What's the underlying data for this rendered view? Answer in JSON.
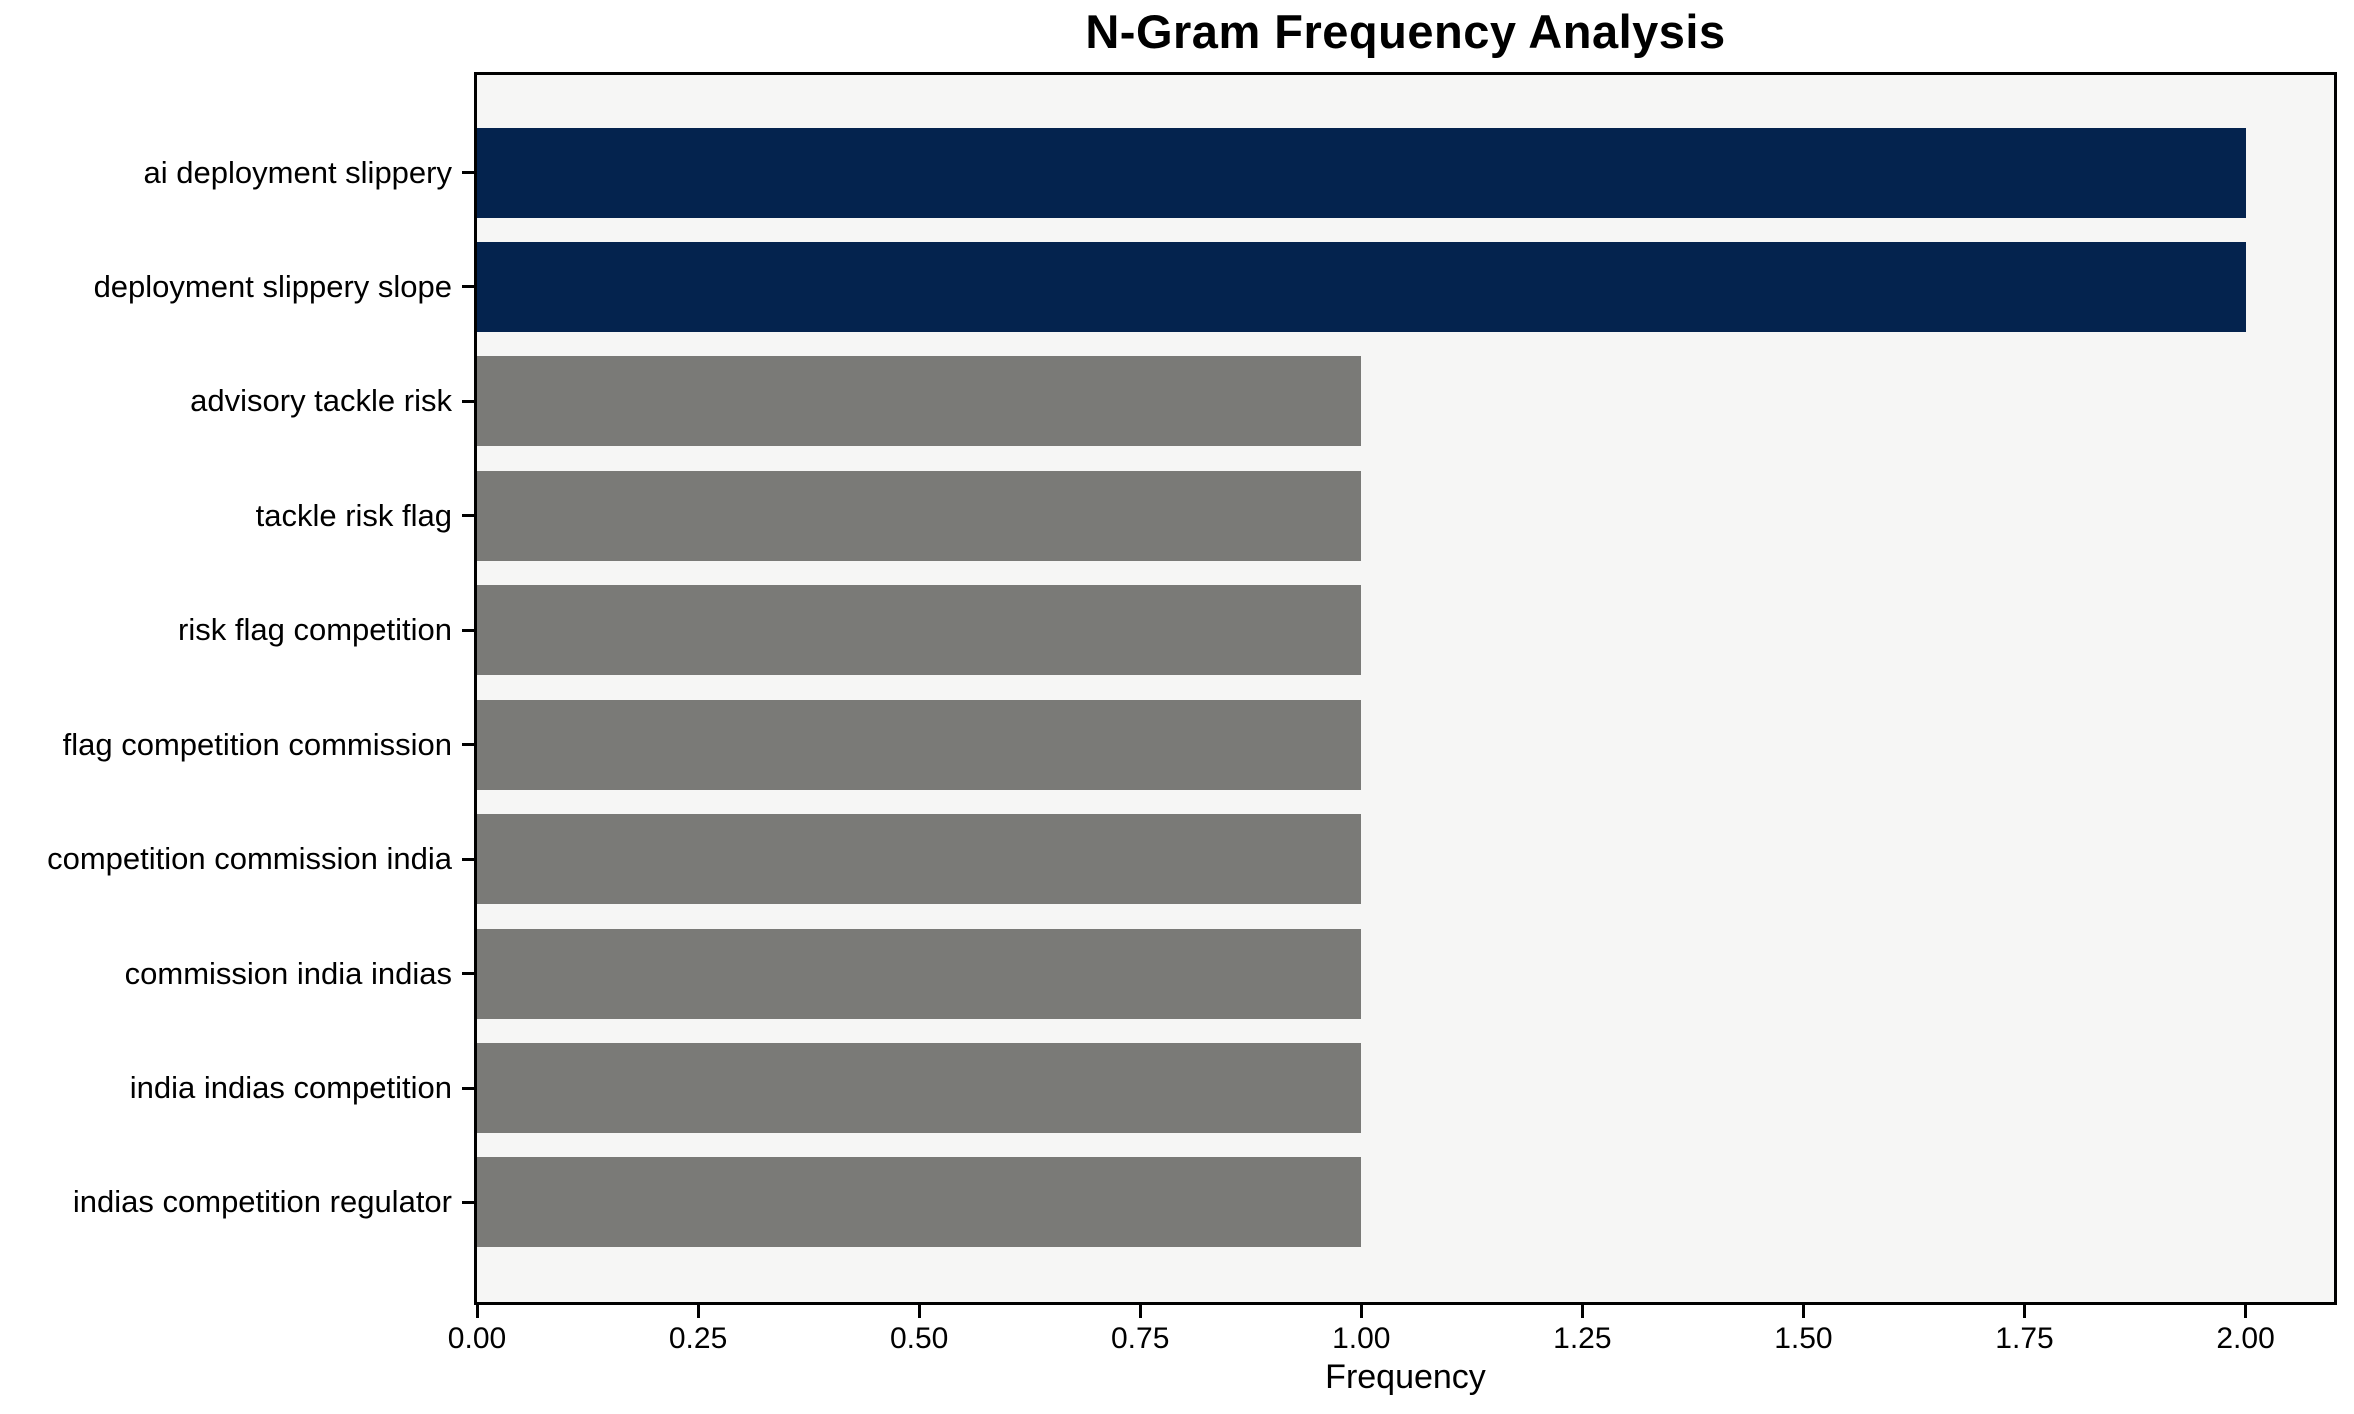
{
  "chart_data": {
    "type": "bar",
    "orientation": "horizontal",
    "title": "N-Gram Frequency Analysis",
    "xlabel": "Frequency",
    "categories": [
      "ai deployment slippery",
      "deployment slippery slope",
      "advisory tackle risk",
      "tackle risk flag",
      "risk flag competition",
      "flag competition commission",
      "competition commission india",
      "commission india indias",
      "india indias competition",
      "indias competition regulator"
    ],
    "values": [
      2,
      2,
      1,
      1,
      1,
      1,
      1,
      1,
      1,
      1
    ],
    "bar_colors": [
      "#04234e",
      "#04234e",
      "#7a7a77",
      "#7a7a77",
      "#7a7a77",
      "#7a7a77",
      "#7a7a77",
      "#7a7a77",
      "#7a7a77",
      "#7a7a77"
    ],
    "highlight_color": "#04234e",
    "default_color": "#7a7a77",
    "x_ticks": [
      "0.00",
      "0.25",
      "0.50",
      "0.75",
      "1.00",
      "1.25",
      "1.50",
      "1.75",
      "2.00"
    ],
    "x_tick_values": [
      0,
      0.25,
      0.5,
      0.75,
      1.0,
      1.25,
      1.5,
      1.75,
      2.0
    ],
    "xlim": [
      0,
      2.1
    ],
    "plot_background": "#f6f6f5",
    "figure_background": "#ffffff",
    "spine_color": "#000000",
    "grid": false
  }
}
